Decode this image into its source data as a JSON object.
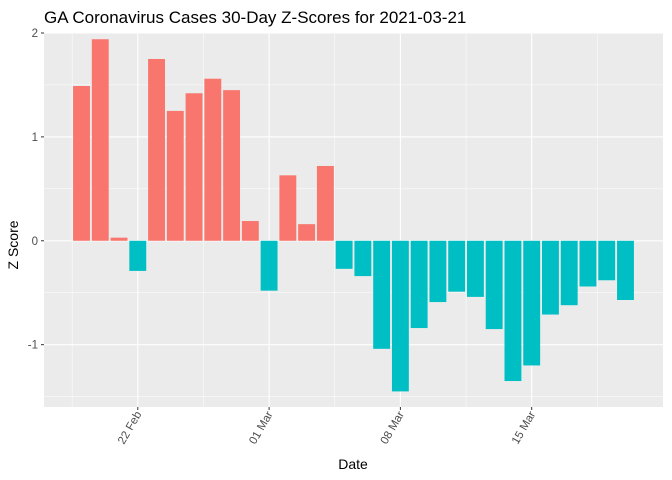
{
  "chart_data": {
    "type": "bar",
    "title": "GA Coronavirus Cases 30-Day Z-Scores for 2021-03-21",
    "xlabel": "Date",
    "ylabel": "Z Score",
    "x_tick_labels": [
      {
        "label": "22 Feb",
        "date": "2021-02-22"
      },
      {
        "label": "01 Mar",
        "date": "2021-03-01"
      },
      {
        "label": "08 Mar",
        "date": "2021-03-08"
      },
      {
        "label": "15 Mar",
        "date": "2021-03-15"
      }
    ],
    "y_ticks": [
      -1,
      0,
      1,
      2
    ],
    "ylim": [
      -1.6,
      2.0
    ],
    "xlim": [
      "2021-02-17",
      "2021-03-22"
    ],
    "grid": true,
    "colors": {
      "positive": "#F8766D",
      "negative": "#00BFC4",
      "panel": "#EBEBEB",
      "grid": "#FFFFFF"
    },
    "dates": [
      "2021-02-19",
      "2021-02-20",
      "2021-02-21",
      "2021-02-22",
      "2021-02-23",
      "2021-02-24",
      "2021-02-25",
      "2021-02-26",
      "2021-02-27",
      "2021-02-28",
      "2021-03-01",
      "2021-03-02",
      "2021-03-03",
      "2021-03-04",
      "2021-03-05",
      "2021-03-06",
      "2021-03-07",
      "2021-03-08",
      "2021-03-09",
      "2021-03-10",
      "2021-03-11",
      "2021-03-12",
      "2021-03-13",
      "2021-03-14",
      "2021-03-15",
      "2021-03-16",
      "2021-03-17",
      "2021-03-18",
      "2021-03-19",
      "2021-03-20"
    ],
    "values": [
      1.49,
      1.94,
      0.03,
      -0.29,
      1.75,
      1.25,
      1.42,
      1.56,
      1.45,
      0.19,
      -0.48,
      0.63,
      0.16,
      0.72,
      -0.27,
      -0.34,
      -1.04,
      -1.45,
      -0.84,
      -0.59,
      -0.49,
      -0.54,
      -0.85,
      -1.35,
      -1.2,
      -0.71,
      -0.62,
      -0.44,
      -0.38,
      -0.57
    ]
  }
}
